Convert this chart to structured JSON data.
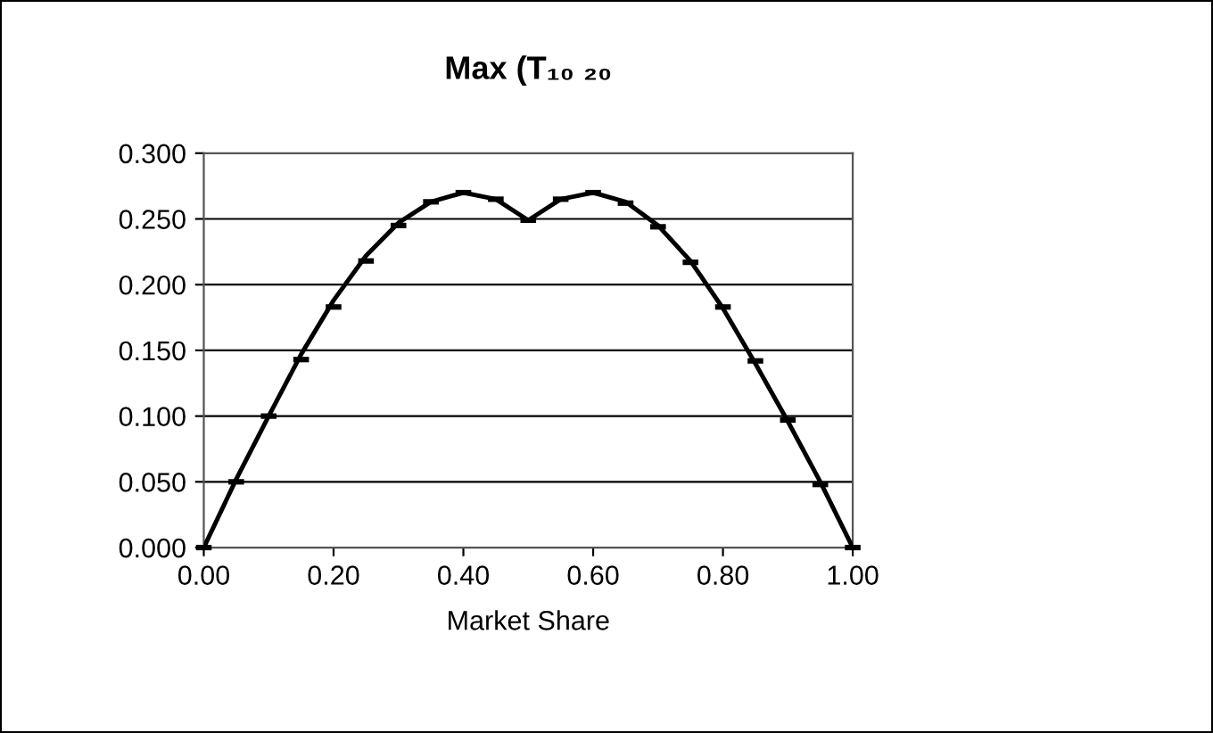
{
  "chart_data": {
    "type": "line",
    "title": "Max (T₁₀ ₂₀",
    "xlabel": "Market Share",
    "xlim": [
      0,
      1
    ],
    "xticks": [
      {
        "value": 0,
        "label": "0.00"
      },
      {
        "value": 0.2,
        "label": "0.20"
      },
      {
        "value": 0.4,
        "label": "0.40"
      },
      {
        "value": 0.6,
        "label": "0.60"
      },
      {
        "value": 0.8,
        "label": "0.80"
      },
      {
        "value": 1,
        "label": "1.00"
      }
    ],
    "ylim": [
      0,
      0.3
    ],
    "yticks": [
      {
        "value": 0,
        "label": "0.000"
      },
      {
        "value": 0.05,
        "label": "0.050"
      },
      {
        "value": 0.1,
        "label": "0.100"
      },
      {
        "value": 0.15,
        "label": "0.150"
      },
      {
        "value": 0.2,
        "label": "0.200"
      },
      {
        "value": 0.25,
        "label": "0.250"
      },
      {
        "value": 0.3,
        "label": "0.300"
      }
    ],
    "grid": "y",
    "legend": false,
    "series": [
      {
        "color": "#000000",
        "x": [
          0,
          0.05,
          0.1,
          0.15,
          0.2,
          0.25,
          0.3,
          0.35,
          0.4,
          0.45,
          0.5,
          0.55,
          0.6,
          0.65,
          0.7,
          0.75,
          0.8,
          0.85,
          0.9,
          0.95,
          1
        ],
        "values": [
          0,
          0.052,
          0.1,
          0.147,
          0.188,
          0.222,
          0.247,
          0.263,
          0.27,
          0.265,
          0.249,
          0.265,
          0.27,
          0.263,
          0.245,
          0.218,
          0.182,
          0.14,
          0.096,
          0.05,
          0
        ]
      },
      {
        "type": "scatter",
        "color": "#000000",
        "x": [
          0,
          0.05,
          0.1,
          0.15,
          0.2,
          0.25,
          0.3,
          0.35,
          0.4,
          0.45,
          0.5,
          0.55,
          0.6,
          0.65,
          0.7,
          0.75,
          0.8,
          0.85,
          0.9,
          0.95,
          1
        ],
        "values": [
          0,
          0.05,
          0.1,
          0.143,
          0.183,
          0.218,
          0.245,
          0.263,
          0.27,
          0.265,
          0.249,
          0.265,
          0.27,
          0.262,
          0.244,
          0.217,
          0.183,
          0.142,
          0.097,
          0.048,
          0
        ]
      }
    ]
  }
}
